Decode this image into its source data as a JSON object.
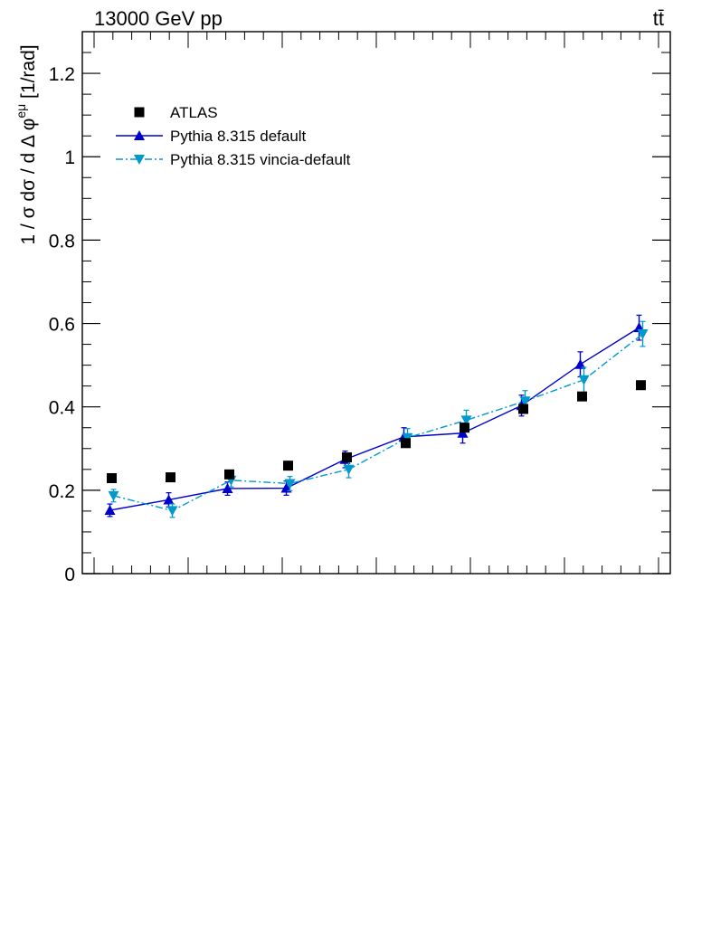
{
  "header": {
    "left_label": "13000 GeV pp",
    "right_label": "tt̄"
  },
  "chart_data": {
    "type": "scatter",
    "title": "",
    "ylabel": {
      "base": "1 / σ  dσ / d Δ φ",
      "superscript": "eμ",
      "unit": " [1/rad]"
    },
    "xlabel": "",
    "ylim": [
      0,
      1.3
    ],
    "y_ticks": [
      0,
      0.2,
      0.4,
      0.6,
      0.8,
      1,
      1.2
    ],
    "y_tick_labels": [
      "0",
      "0.2",
      "0.4",
      "0.6",
      "0.8",
      "1",
      "1.2"
    ],
    "bins": 10,
    "legend_position": "top-left",
    "series": [
      {
        "name": "ATLAS",
        "style": "square-markers",
        "color": "#000000",
        "values": [
          0.229,
          0.231,
          0.238,
          0.259,
          0.279,
          0.313,
          0.35,
          0.395,
          0.425,
          0.452
        ],
        "errors": [
          0.006,
          0.006,
          0.006,
          0.006,
          0.006,
          0.006,
          0.007,
          0.007,
          0.007,
          0.007
        ]
      },
      {
        "name": "Pythia 8.315 default",
        "style": "solid-line-triangle-up",
        "color": "#0000cc",
        "values": [
          0.152,
          0.177,
          0.204,
          0.205,
          0.274,
          0.328,
          0.337,
          0.403,
          0.502,
          0.59
        ],
        "errors": [
          0.015,
          0.017,
          0.016,
          0.017,
          0.02,
          0.022,
          0.024,
          0.025,
          0.03,
          0.03
        ]
      },
      {
        "name": "Pythia 8.315 vincia-default",
        "style": "dashdot-line-triangle-down",
        "color": "#0099cc",
        "values": [
          0.187,
          0.151,
          0.224,
          0.216,
          0.25,
          0.326,
          0.368,
          0.414,
          0.465,
          0.575
        ],
        "errors": [
          0.015,
          0.016,
          0.016,
          0.017,
          0.02,
          0.022,
          0.024,
          0.025,
          0.03,
          0.03
        ]
      }
    ]
  }
}
